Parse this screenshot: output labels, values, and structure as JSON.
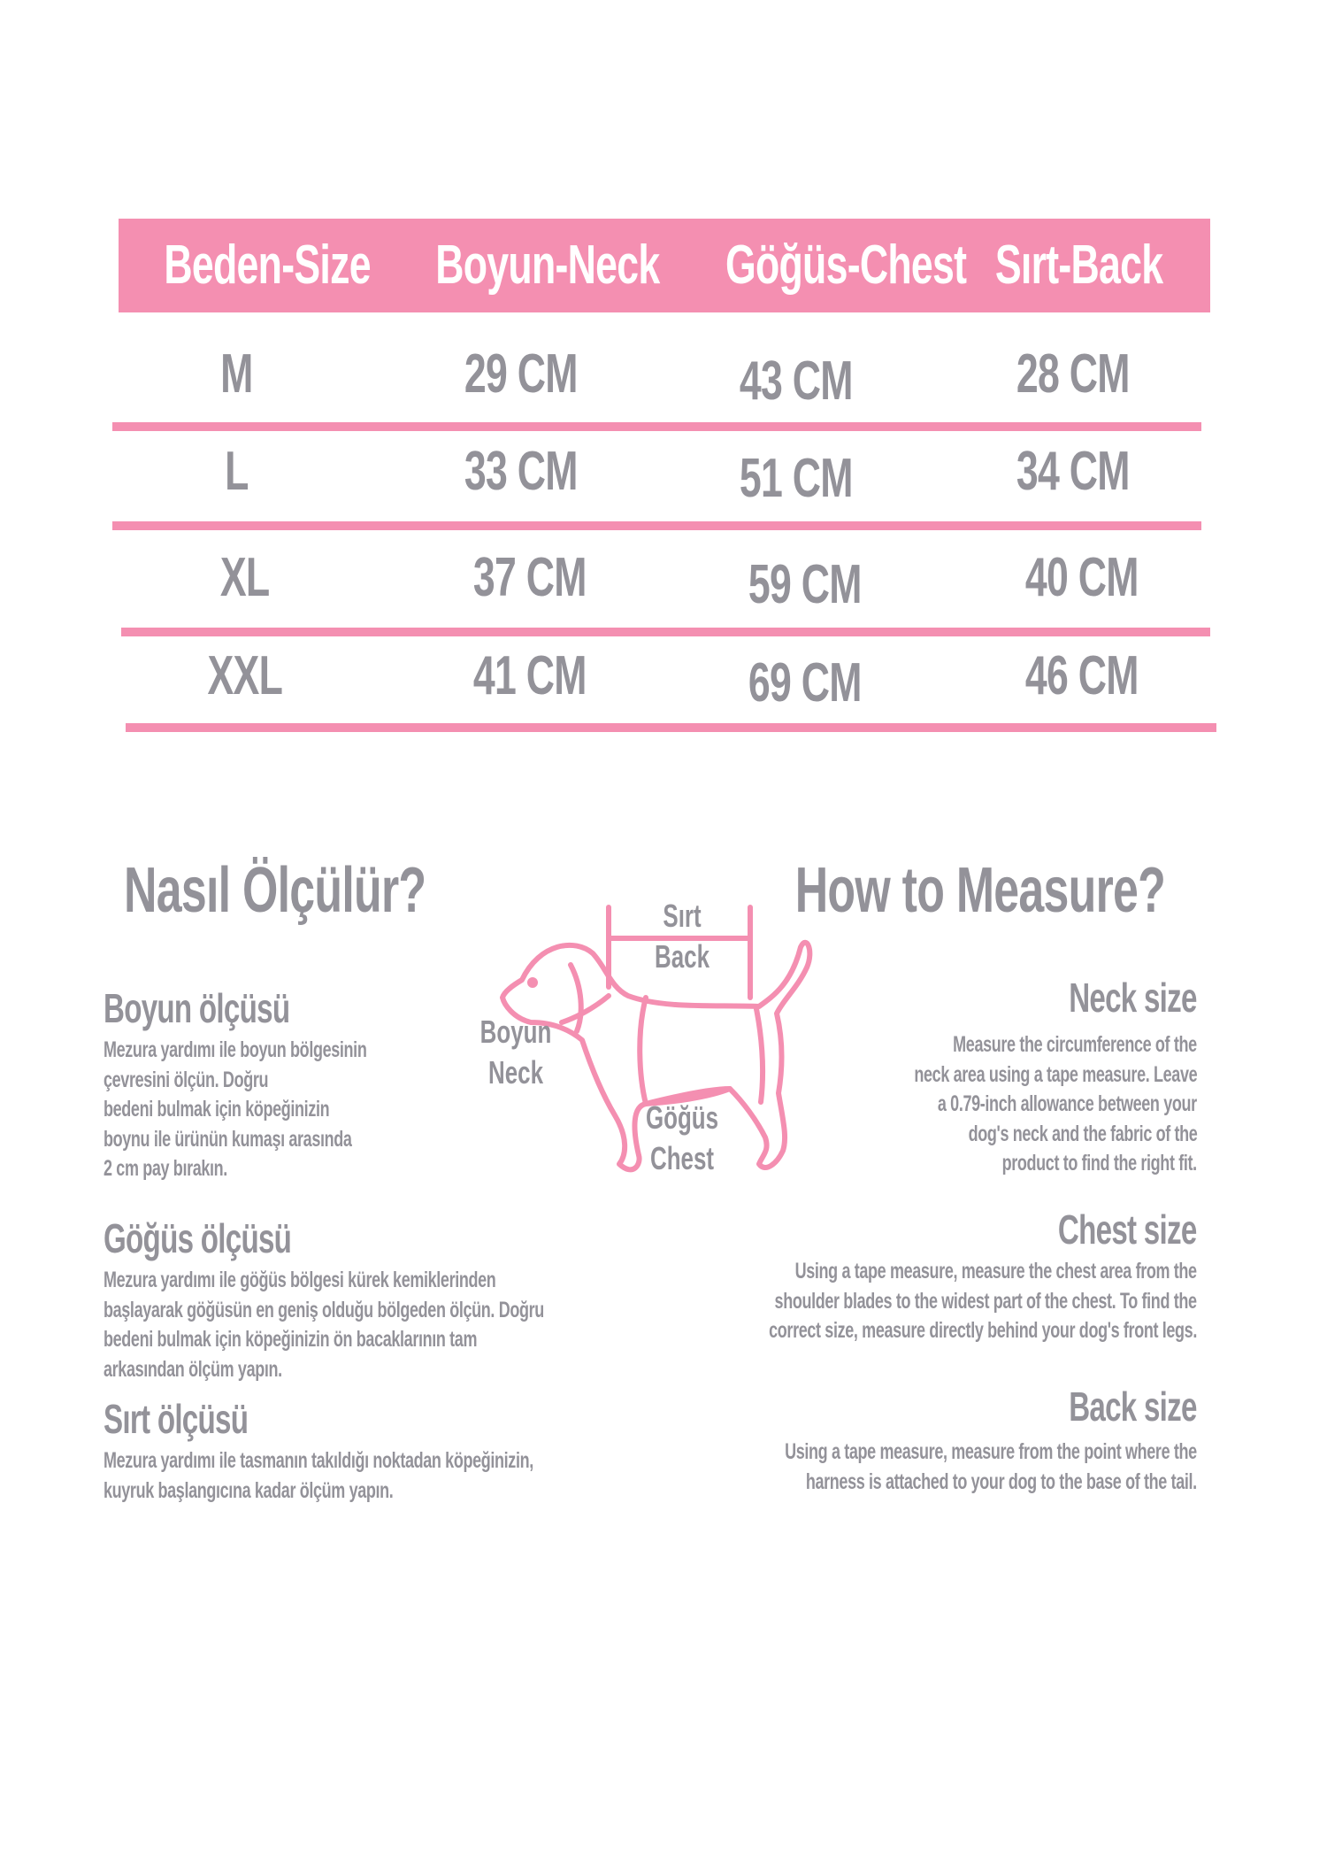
{
  "colors": {
    "accent": "#F48FB1",
    "text": "#939299"
  },
  "table": {
    "headers": [
      "Beden-Size",
      "Boyun-Neck",
      "Göğüs-Chest",
      "Sırt-Back"
    ],
    "rows": [
      {
        "size": "M",
        "neck": "29 CM",
        "chest": "43 CM",
        "back": "28 CM"
      },
      {
        "size": "L",
        "neck": "33 CM",
        "chest": "51 CM",
        "back": "34 CM"
      },
      {
        "size": "XL",
        "neck": "37 CM",
        "chest": "59 CM",
        "back": "40 CM"
      },
      {
        "size": "XXL",
        "neck": "41 CM",
        "chest": "69 CM",
        "back": "46 CM"
      }
    ]
  },
  "tr": {
    "title": "Nasıl Ölçülür?",
    "neck": {
      "heading": "Boyun ölçüsü",
      "lines": [
        "Mezura yardımı ile boyun bölgesinin",
        "çevresini ölçün. Doğru",
        "bedeni bulmak için köpeğinizin",
        "boynu ile ürünün kumaşı arasında",
        "2 cm pay bırakın."
      ]
    },
    "chest": {
      "heading": "Göğüs ölçüsü",
      "lines": [
        "Mezura yardımı ile göğüs bölgesi kürek kemiklerinden",
        "başlayarak göğüsün en geniş olduğu bölgeden ölçün. Doğru",
        "bedeni bulmak için köpeğinizin ön bacaklarının tam",
        "arkasından ölçüm yapın."
      ]
    },
    "back": {
      "heading": "Sırt ölçüsü",
      "lines": [
        "Mezura yardımı ile tasmanın takıldığı noktadan köpeğinizin,",
        "kuyruk başlangıcına kadar ölçüm yapın."
      ]
    }
  },
  "en": {
    "title": "How to Measure?",
    "neck": {
      "heading": "Neck size",
      "lines": [
        "Measure the circumference of the",
        "neck area using a tape measure. Leave",
        "a 0.79-inch allowance between your",
        "dog's neck and the fabric of the",
        "product to find the right fit."
      ]
    },
    "chest": {
      "heading": "Chest size",
      "lines": [
        "Using a tape measure, measure the chest area from the",
        "shoulder blades to the widest part of the chest. To find the",
        "correct size, measure directly behind your dog's front legs."
      ]
    },
    "back": {
      "heading": "Back size",
      "lines": [
        "Using a tape measure, measure from the point where the",
        "harness is attached to your dog to the base of the tail."
      ]
    }
  },
  "diagram": {
    "back_tr": "Sırt",
    "back_en": "Back",
    "neck_tr": "Boyun",
    "neck_en": "Neck",
    "chest_tr": "Göğüs",
    "chest_en": "Chest",
    "icon": "dog-outline-icon"
  }
}
